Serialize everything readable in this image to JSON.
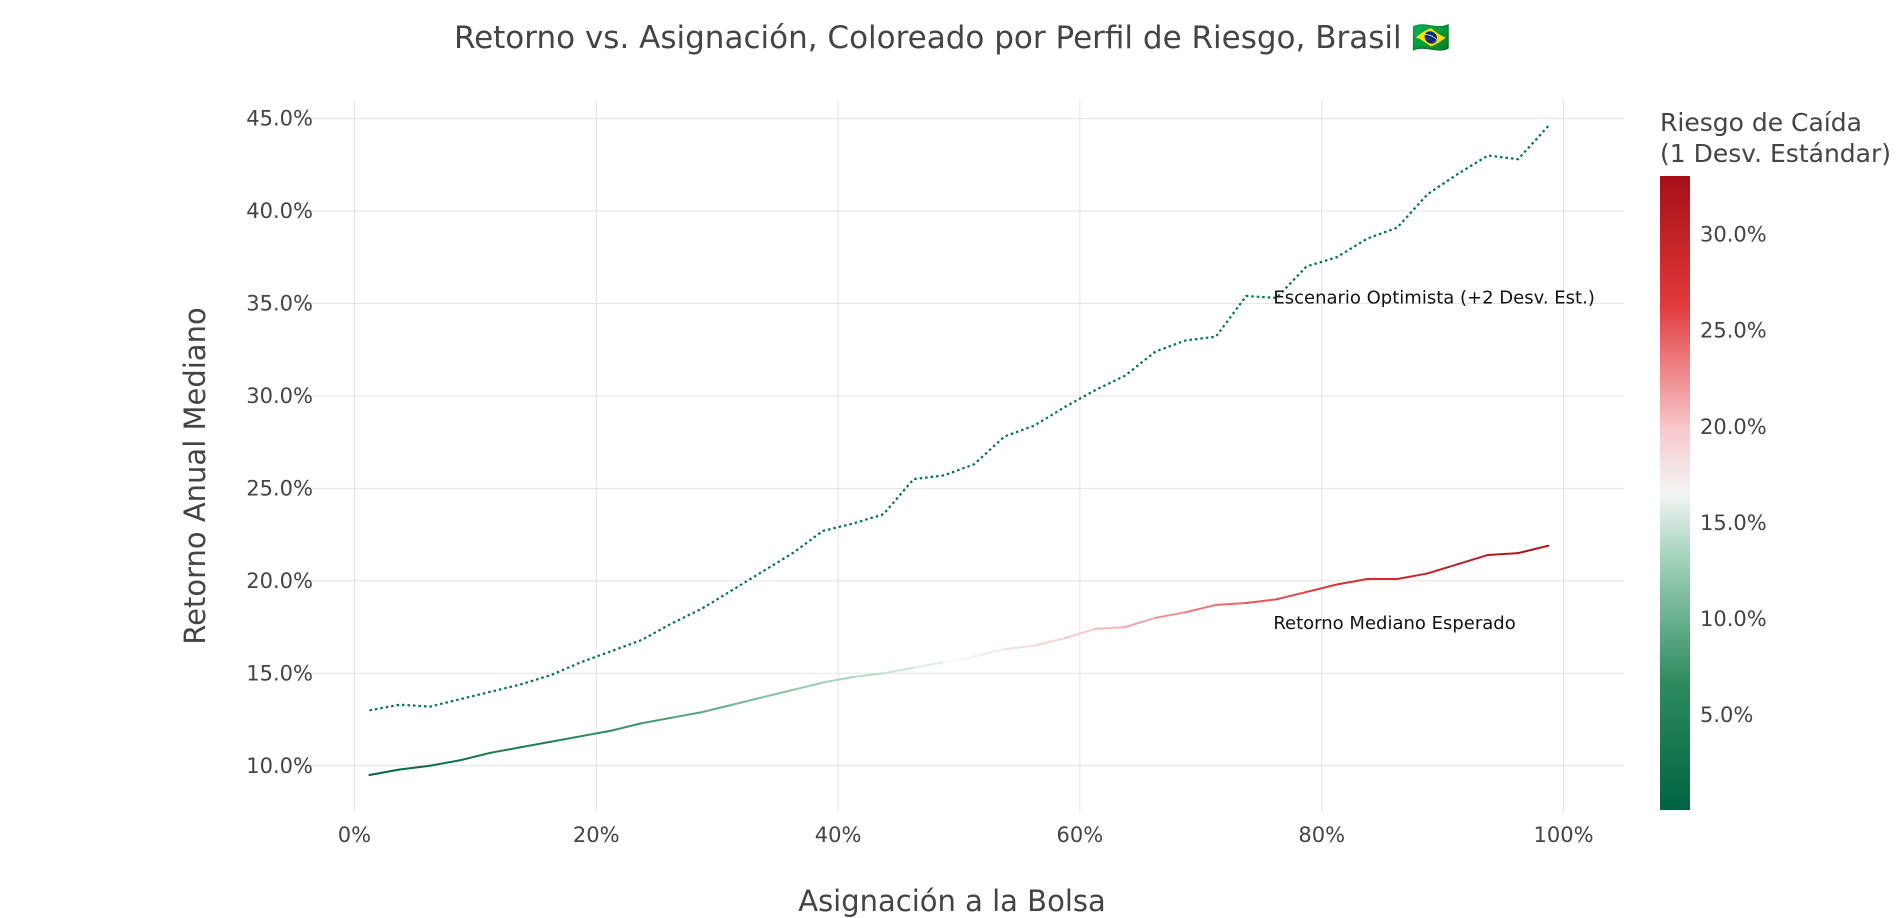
{
  "chart_data": {
    "type": "line",
    "title": "Retorno vs. Asignación, Coloreado por Perfil de Riesgo, Brasil 🇧🇷",
    "xlabel": "Asignación a la Bolsa",
    "ylabel": "Retorno Anual Mediano",
    "xlim": [
      -0.045,
      1.05
    ],
    "ylim": [
      0.075,
      0.46
    ],
    "x_ticks": [
      0,
      0.2,
      0.4,
      0.6,
      0.8,
      1.0
    ],
    "x_tick_labels": [
      "0%",
      "20%",
      "40%",
      "60%",
      "80%",
      "100%"
    ],
    "y_ticks": [
      0.1,
      0.15,
      0.2,
      0.25,
      0.3,
      0.35,
      0.4,
      0.45
    ],
    "y_tick_labels": [
      "10.0%",
      "15.0%",
      "20.0%",
      "25.0%",
      "30.0%",
      "35.0%",
      "40.0%",
      "45.0%"
    ],
    "grid": true,
    "x": [
      0.0125,
      0.0375,
      0.0625,
      0.0875,
      0.1125,
      0.1375,
      0.1625,
      0.1875,
      0.2125,
      0.2375,
      0.2625,
      0.2875,
      0.3125,
      0.3375,
      0.3625,
      0.3875,
      0.4125,
      0.4375,
      0.4625,
      0.4875,
      0.5125,
      0.5375,
      0.5625,
      0.5875,
      0.6125,
      0.6375,
      0.6625,
      0.6875,
      0.7125,
      0.7375,
      0.7625,
      0.7875,
      0.8125,
      0.8375,
      0.8625,
      0.8875,
      0.9125,
      0.9375,
      0.9625,
      0.9875
    ],
    "series": [
      {
        "name": "Escenario Optimista (+2 Desv. Est.)",
        "style": "dotted",
        "color": "#00734a",
        "values": [
          0.13,
          0.133,
          0.132,
          0.136,
          0.14,
          0.144,
          0.149,
          0.156,
          0.162,
          0.168,
          0.177,
          0.185,
          0.195,
          0.205,
          0.215,
          0.227,
          0.231,
          0.236,
          0.255,
          0.257,
          0.263,
          0.278,
          0.284,
          0.294,
          0.303,
          0.311,
          0.324,
          0.33,
          0.332,
          0.354,
          0.353,
          0.37,
          0.375,
          0.385,
          0.391,
          0.409,
          0.42,
          0.43,
          0.428,
          0.446
        ]
      },
      {
        "name": "Retorno Mediano Esperado",
        "style": "solid",
        "color_by": "risk",
        "values": [
          0.095,
          0.098,
          0.1,
          0.103,
          0.107,
          0.11,
          0.113,
          0.116,
          0.119,
          0.123,
          0.126,
          0.129,
          0.133,
          0.137,
          0.141,
          0.145,
          0.148,
          0.15,
          0.153,
          0.156,
          0.159,
          0.163,
          0.165,
          0.169,
          0.174,
          0.175,
          0.18,
          0.183,
          0.187,
          0.188,
          0.19,
          0.194,
          0.198,
          0.201,
          0.201,
          0.204,
          0.209,
          0.214,
          0.215,
          0.219
        ]
      }
    ],
    "annotations": [
      {
        "text": "Escenario Optimista (+2 Desv. Est.)",
        "x": 0.76,
        "y": 0.35
      },
      {
        "text": "Retorno Mediano Esperado",
        "x": 0.76,
        "y": 0.174
      }
    ],
    "colorbar": {
      "title_lines": [
        "Riesgo de Caída",
        "(1 Desv. Estándar)"
      ],
      "range": [
        0.0,
        0.33
      ],
      "ticks": [
        0.05,
        0.1,
        0.15,
        0.2,
        0.25,
        0.3
      ],
      "tick_labels": [
        "5.0%",
        "10.0%",
        "15.0%",
        "20.0%",
        "25.0%",
        "30.0%"
      ],
      "colorscale": [
        [
          0.0,
          "#006341"
        ],
        [
          0.2,
          "#2e8b5e"
        ],
        [
          0.4,
          "#a3d4bc"
        ],
        [
          0.5,
          "#f4f4f4"
        ],
        [
          0.6,
          "#f7c9cc"
        ],
        [
          0.8,
          "#e2383a"
        ],
        [
          1.0,
          "#a50f15"
        ]
      ]
    }
  }
}
